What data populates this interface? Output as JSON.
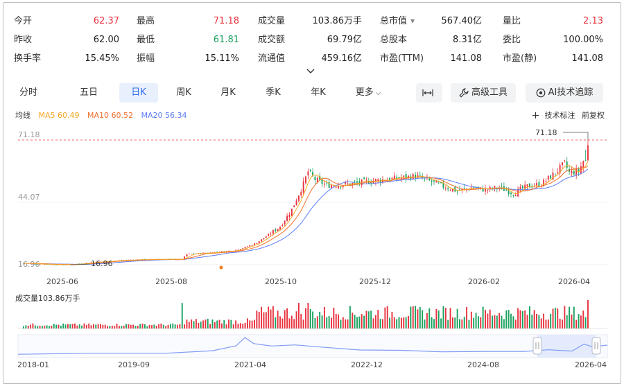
{
  "metrics": [
    {
      "label": "今开",
      "value": "62.37",
      "tone": "up"
    },
    {
      "label": "最高",
      "value": "71.18",
      "tone": "up"
    },
    {
      "label": "成交量",
      "value": "103.86万手",
      "tone": ""
    },
    {
      "label": "总市值",
      "value": "567.40亿",
      "tone": "",
      "has_caret": true
    },
    {
      "label": "量比",
      "value": "2.13",
      "tone": "up"
    },
    {
      "label": "昨收",
      "value": "62.00",
      "tone": ""
    },
    {
      "label": "最低",
      "value": "61.81",
      "tone": "down"
    },
    {
      "label": "成交额",
      "value": "69.79亿",
      "tone": ""
    },
    {
      "label": "总股本",
      "value": "8.31亿",
      "tone": ""
    },
    {
      "label": "委比",
      "value": "100.00%",
      "tone": ""
    },
    {
      "label": "换手率",
      "value": "15.45%",
      "tone": ""
    },
    {
      "label": "振幅",
      "value": "15.11%",
      "tone": ""
    },
    {
      "label": "流通值",
      "value": "459.16亿",
      "tone": ""
    },
    {
      "label": "市盈(TTM)",
      "value": "141.08",
      "tone": ""
    },
    {
      "label": "市盈(静)",
      "value": "141.08",
      "tone": ""
    }
  ],
  "tabs": [
    {
      "label": "分时",
      "name": "tab-intraday"
    },
    {
      "label": "五日",
      "name": "tab-five-day"
    },
    {
      "label": "日K",
      "name": "tab-daily-k",
      "active": true
    },
    {
      "label": "周K",
      "name": "tab-weekly-k"
    },
    {
      "label": "月K",
      "name": "tab-monthly-k"
    },
    {
      "label": "季K",
      "name": "tab-quarterly-k"
    },
    {
      "label": "年K",
      "name": "tab-yearly-k"
    },
    {
      "label": "更多",
      "name": "tab-more",
      "chevron": true
    }
  ],
  "toolbar": {
    "advanced_tools": "高级工具",
    "ai_tracking": "AI技术追踪",
    "icons": {
      "fit": "expand-horizontal-icon",
      "tools": "tools-icon",
      "ai": "ai-track-icon"
    }
  },
  "ma_legend": {
    "label": "均线",
    "ma5": "MA5 60.49",
    "ma10": "MA10 60.52",
    "ma20": "MA20 56.34"
  },
  "chart_tools": {
    "tech_mark": "技术标注",
    "adjust": "前复权"
  },
  "volume_label": "成交量103.86万手",
  "colors": {
    "up": "#e8313d",
    "down": "#19a15f",
    "ma5": "#f6a623",
    "ma10": "#ef6d2d",
    "ma20": "#5b7cf7",
    "accent": "#2f6bea",
    "navigator_line": "#7e9bf2"
  },
  "chart_data": {
    "type": "candlestick",
    "y_labels": [
      "71.18",
      "44.07",
      "16.96"
    ],
    "high_marker": "71.18",
    "low_marker": "16.96",
    "x_labels": [
      "2025-06",
      "2025-08",
      "2025-10",
      "2025-12",
      "2026-02",
      "2026-04"
    ],
    "close_anchors": [
      [
        0,
        17.6
      ],
      [
        12,
        17.1
      ],
      [
        20,
        17.0
      ],
      [
        30,
        18.0
      ],
      [
        40,
        18.7
      ],
      [
        50,
        19.2
      ],
      [
        60,
        19.3
      ],
      [
        68,
        19.2
      ],
      [
        70,
        21.5
      ],
      [
        80,
        22.2
      ],
      [
        90,
        23.1
      ],
      [
        95,
        24.5
      ],
      [
        100,
        26.5
      ],
      [
        110,
        33.5
      ],
      [
        115,
        41.0
      ],
      [
        120,
        52.0
      ],
      [
        122,
        57.5
      ],
      [
        125,
        54.0
      ],
      [
        130,
        51.5
      ],
      [
        140,
        52.0
      ],
      [
        150,
        53.5
      ],
      [
        160,
        54.5
      ],
      [
        168,
        55.5
      ],
      [
        175,
        53.0
      ],
      [
        180,
        51.0
      ],
      [
        186,
        49.0
      ],
      [
        192,
        50.5
      ],
      [
        198,
        49.5
      ],
      [
        204,
        50.5
      ],
      [
        210,
        48.0
      ],
      [
        216,
        51.0
      ],
      [
        222,
        52.0
      ],
      [
        228,
        57.0
      ],
      [
        232,
        61.0
      ],
      [
        234,
        57.0
      ],
      [
        238,
        57.5
      ],
      [
        240,
        62.0
      ],
      [
        242,
        68.5
      ]
    ],
    "ma_values": {
      "ma5": 60.49,
      "ma10": 60.52,
      "ma20": 56.34
    },
    "volume": "103.86万手"
  },
  "navigator": {
    "x_labels": [
      "2018-01",
      "2019-09",
      "2021-04",
      "2022-12",
      "2024-08",
      "2026-04"
    ]
  }
}
